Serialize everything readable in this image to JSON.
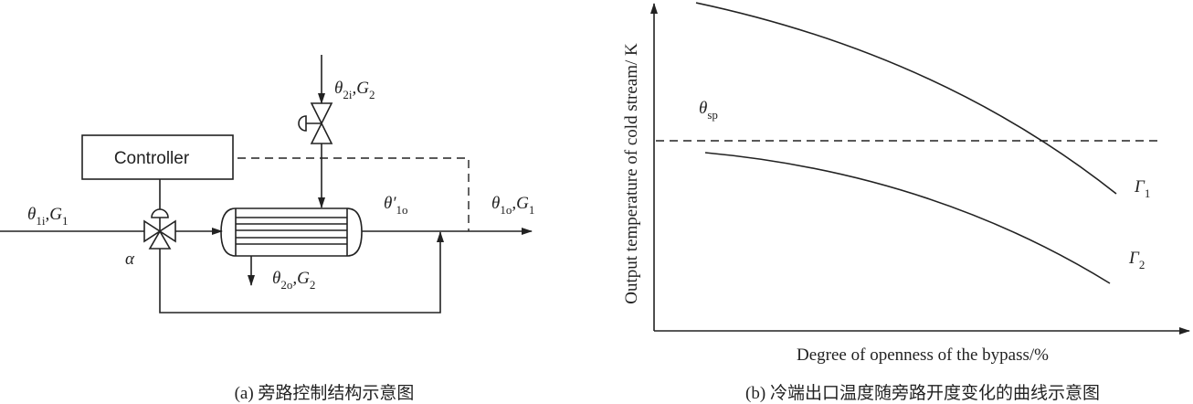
{
  "panel_a": {
    "controller": "Controller",
    "alpha": "α",
    "labels": [
      {
        "parts": [
          "θ",
          "1i",
          ",G",
          "1"
        ]
      },
      {
        "parts": [
          "θ",
          "2i",
          ",G",
          "2"
        ]
      },
      {
        "parts": [
          "θ′",
          "1o"
        ]
      },
      {
        "parts": [
          "θ",
          "1o",
          ",G",
          "1"
        ]
      },
      {
        "parts": [
          "θ",
          "2o",
          ",G",
          "2"
        ]
      }
    ],
    "caption": "(a) 旁路控制结构示意图"
  },
  "panel_b": {
    "y_label": "Output temperature of cold stream/ K",
    "x_label": "Degree of openness of the bypass/%",
    "setpoint": {
      "parts": [
        "θ",
        "sp"
      ]
    },
    "curve_labels": [
      {
        "parts": [
          "Γ",
          "1"
        ]
      },
      {
        "parts": [
          "Γ",
          "2"
        ]
      }
    ],
    "caption": "(b) 冷端出口温度随旁路开度变化的曲线示意图"
  }
}
